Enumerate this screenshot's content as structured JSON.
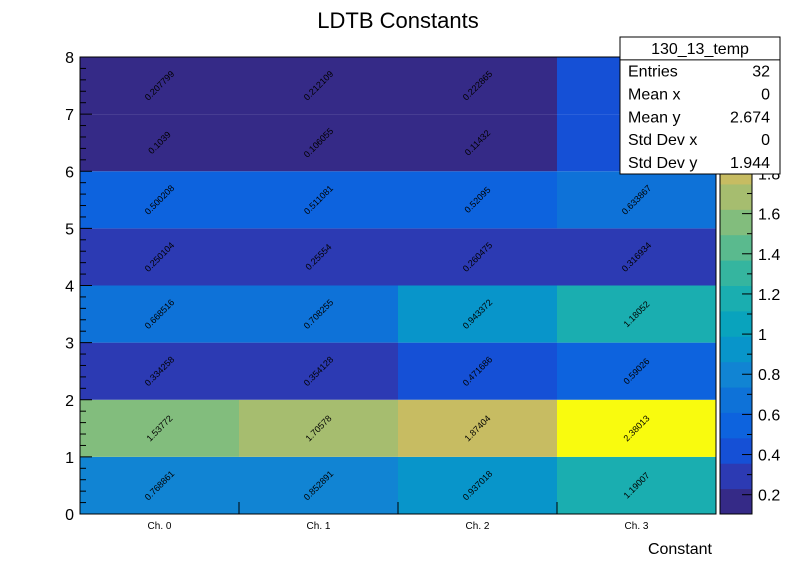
{
  "chart_data": {
    "type": "heatmap",
    "title": "LDTB Constants",
    "xlabel": "Constant",
    "ylabel": "",
    "x_categories": [
      "Ch. 0",
      "Ch. 1",
      "Ch. 2",
      "Ch. 3"
    ],
    "ylim": [
      0,
      8
    ],
    "y_ticks": [
      "0",
      "1",
      "2",
      "3",
      "4",
      "5",
      "6",
      "7",
      "8"
    ],
    "y_bins": [
      0,
      1,
      2,
      3,
      4,
      5,
      6,
      7
    ],
    "values": [
      [
        "0.768861",
        "0.852891",
        "0.937018",
        "1.19007"
      ],
      [
        "1.53772",
        "1.70578",
        "1.87404",
        "2.38013"
      ],
      [
        "0.334258",
        "0.354128",
        "0.471686",
        "0.59026"
      ],
      [
        "0.668516",
        "0.708255",
        "0.943372",
        "1.18052"
      ],
      [
        "0.250104",
        "0.25554",
        "0.260475",
        "0.316934"
      ],
      [
        "0.500208",
        "0.511081",
        "0.52095",
        "0.633867"
      ],
      [
        "0.1039",
        "0.106055",
        "0.11432",
        ""
      ],
      [
        "0.207799",
        "0.212109",
        "0.222865",
        ""
      ]
    ],
    "zlim": [
      0.1039,
      2.38013
    ],
    "z_ticks": [
      "0.2",
      "0.4",
      "0.6",
      "0.8",
      "1",
      "1.2",
      "1.4",
      "1.6",
      "1.8"
    ],
    "colormap": [
      "#352a87",
      "#2c3ab3",
      "#1550d6",
      "#0d63de",
      "#0e72d8",
      "#1184d3",
      "#0895ca",
      "#09a3bd",
      "#1aaeb0",
      "#35b59f",
      "#5aba8e",
      "#82bd7d",
      "#a6bd6f",
      "#c7bc62",
      "#e4bb52",
      "#f6c93c",
      "#f3e31e",
      "#f9fb0e"
    ],
    "grid": false,
    "stats_box": {
      "name": "130_13_temp",
      "rows": [
        {
          "label": "Entries",
          "value": "32"
        },
        {
          "label": "Mean x",
          "value": "0"
        },
        {
          "label": "Mean y",
          "value": "2.674"
        },
        {
          "label": "Std Dev x",
          "value": "0"
        },
        {
          "label": "Std Dev y",
          "value": "1.944"
        }
      ]
    }
  }
}
